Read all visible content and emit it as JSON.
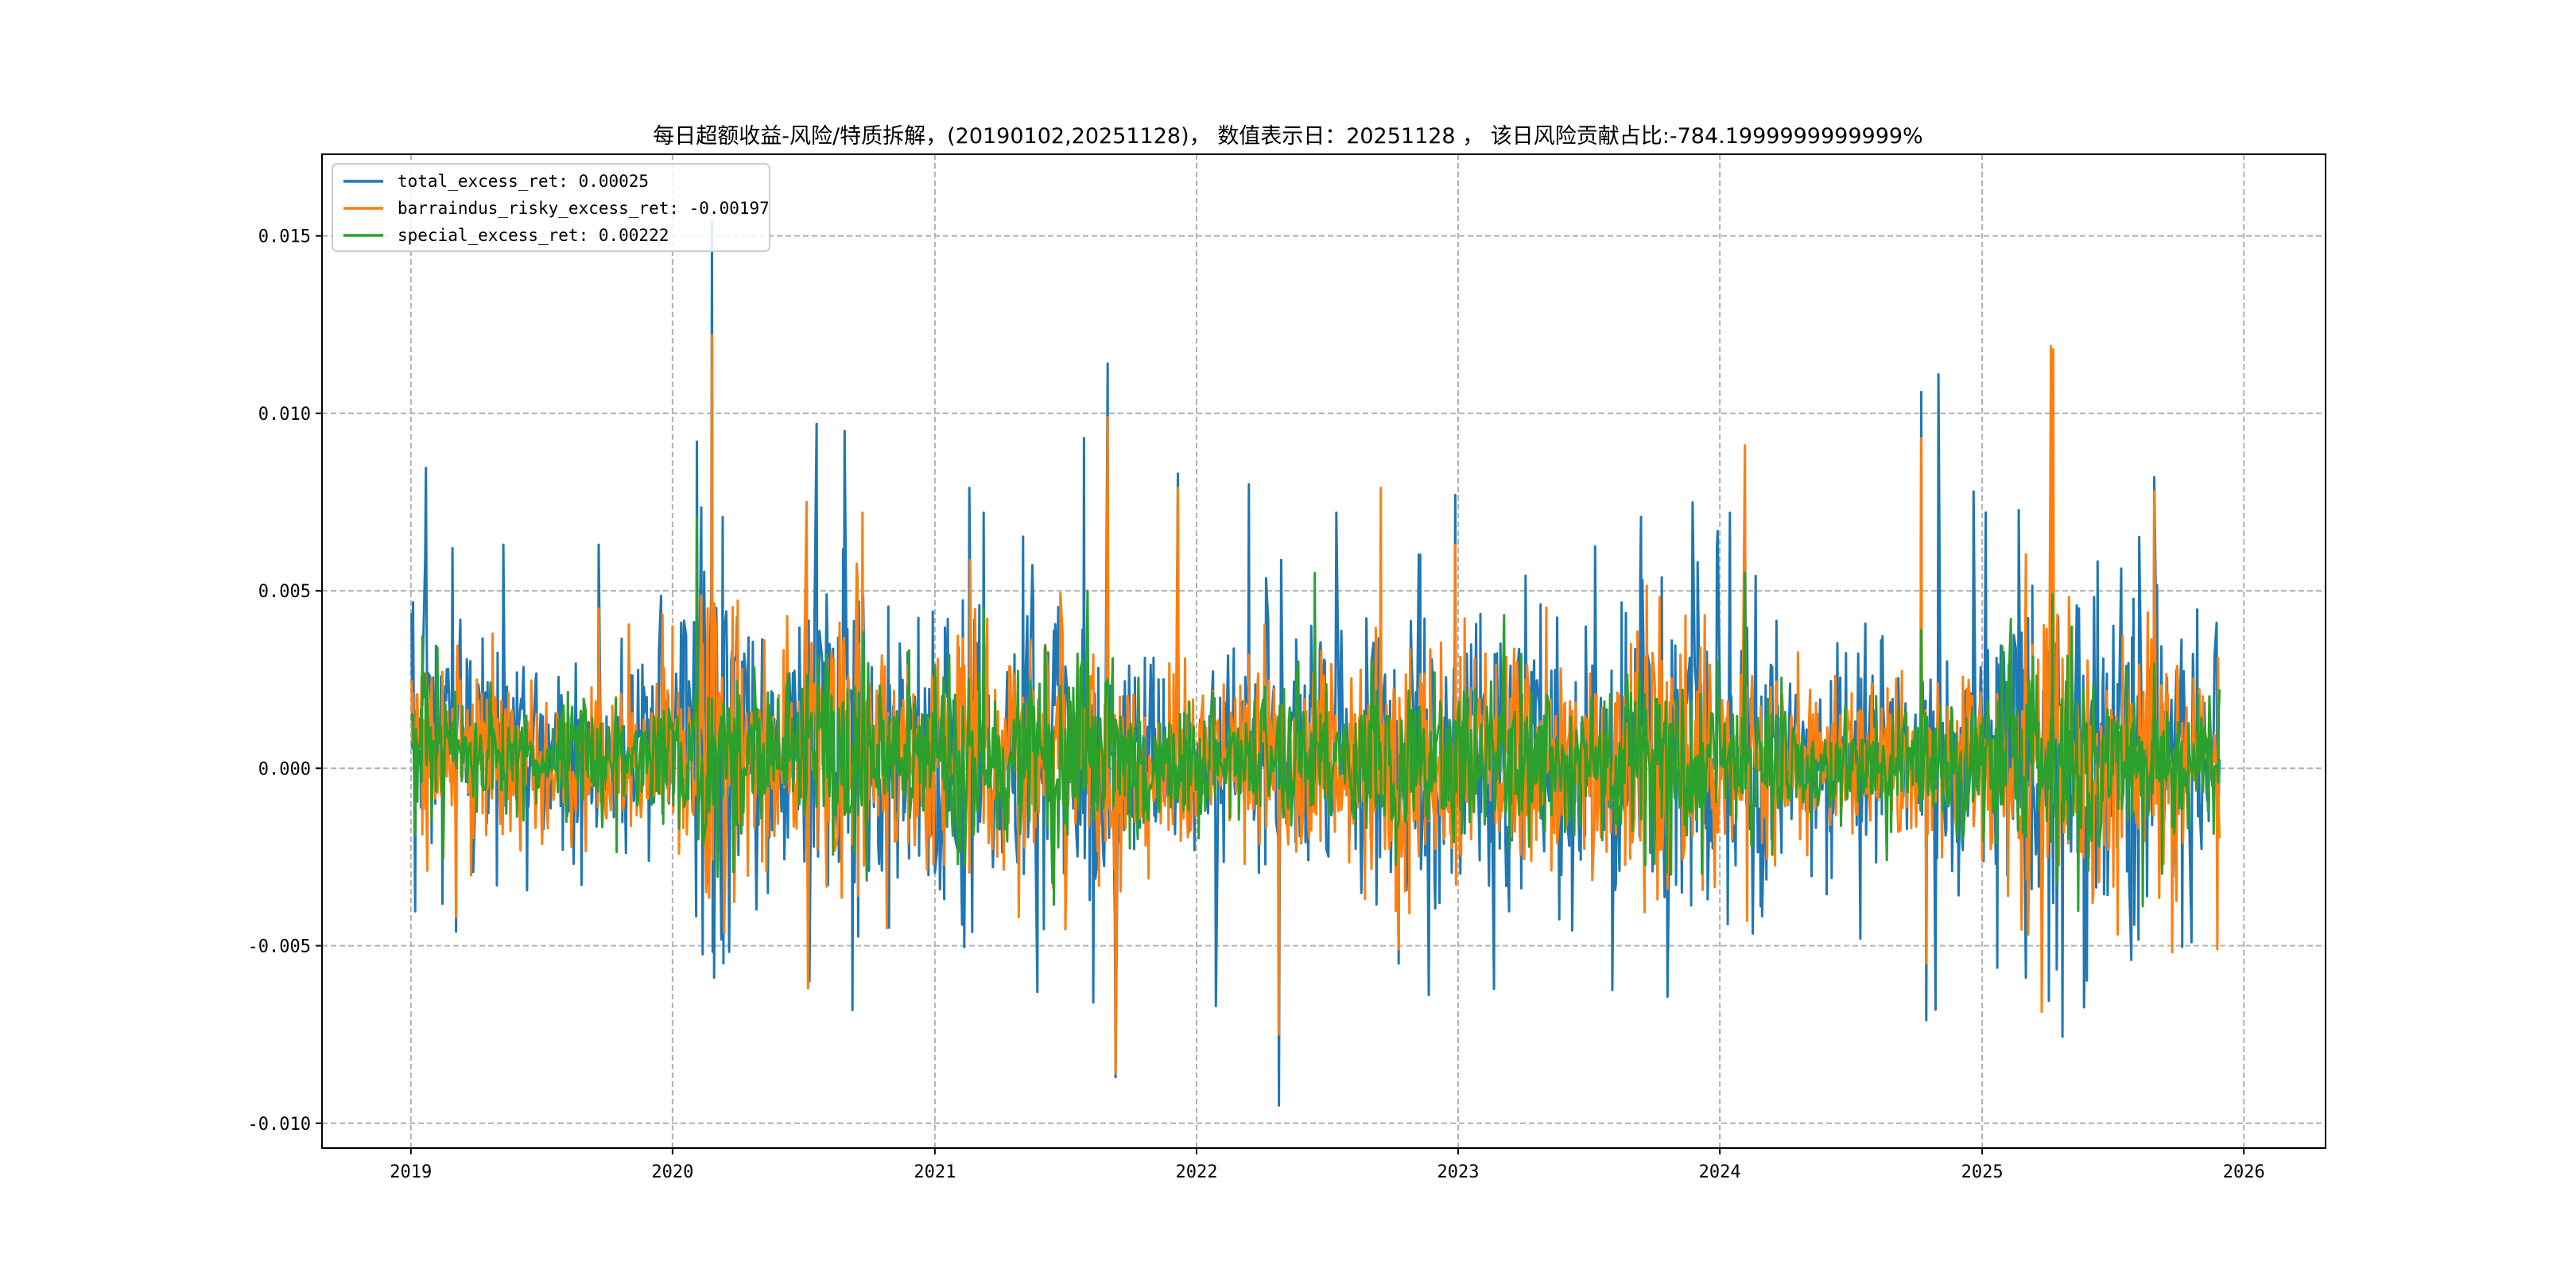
{
  "chart_data": {
    "type": "line",
    "title": "每日超额收益-风险/特质拆解，(20190102,20251128)， 数值表示日：20251128 ， 该日风险贡献占比:-784.1999999999999%",
    "xlabel": "",
    "ylabel": "",
    "x_ticks": [
      "2019",
      "2020",
      "2021",
      "2022",
      "2023",
      "2024",
      "2025",
      "2026"
    ],
    "y_ticks": [
      "0.015",
      "0.010",
      "0.005",
      "0.000",
      "-0.005",
      "-0.010"
    ],
    "xlim": [
      "2018-08-30",
      "2026-04-25"
    ],
    "ylim": [
      -0.0107,
      0.0173
    ],
    "grid": true,
    "legend_position": "top-left",
    "date_range": [
      "2019-01-02",
      "2025-11-28"
    ],
    "series": [
      {
        "name": "total_excess_ret: 0.00025",
        "color": "#1f77b4",
        "volatility": [
          0.0025,
          0.0022,
          0.0018,
          0.002,
          0.0015,
          0.0013,
          0.0012,
          0.0018,
          0.0016,
          0.0015,
          0.0014,
          0.0018,
          0.0017,
          0.003,
          0.0026,
          0.0022,
          0.0018,
          0.002,
          0.0024,
          0.0028,
          0.0032,
          0.0024,
          0.002,
          0.0018,
          0.0022,
          0.0027,
          0.0023,
          0.002,
          0.0022,
          0.0026,
          0.0024,
          0.0021,
          0.0018,
          0.0016,
          0.0014,
          0.0014,
          0.0013,
          0.0012,
          0.0018,
          0.002,
          0.0019,
          0.0018,
          0.0017,
          0.0019,
          0.0021,
          0.0026,
          0.0024,
          0.0022,
          0.0021,
          0.0023,
          0.0022,
          0.002,
          0.0018,
          0.0017,
          0.0018,
          0.0022,
          0.0025,
          0.0028,
          0.0026,
          0.0024,
          0.0022,
          0.0021,
          0.0018,
          0.0016,
          0.0015,
          0.0014,
          0.0015,
          0.0016,
          0.0014,
          0.0013,
          0.0015,
          0.0016,
          0.0022,
          0.0028,
          0.0032,
          0.0034,
          0.003,
          0.0026,
          0.0024,
          0.0026,
          0.0022,
          0.0016,
          0.0014
        ],
        "mean": [
          0.0008,
          0.0008,
          0.0007,
          0.0007,
          0.0005,
          0.0004,
          0.0004,
          0.0004,
          0.0004,
          0.0004,
          0.0005,
          0.0007,
          0.0007,
          0.0007,
          0.0007,
          0.0006,
          0.0005,
          0.0009,
          0.0009,
          0.0009,
          0.0006,
          0.0006,
          0.0005,
          0.0004,
          0.0004,
          0.0004,
          0.0003,
          0.0003,
          0.0004,
          0.0004,
          0.0004,
          0.0003,
          0.0002,
          0.0002,
          0.0003,
          0.0003,
          0.0004,
          0.0005,
          0.0005,
          0.0006,
          0.0005,
          0.0004,
          0.0004,
          0.0004,
          0.0003,
          0.0003,
          0.0003,
          0.0003,
          0.0005,
          0.0004,
          0.0004,
          0.0003,
          0.0003,
          0.0002,
          0.0003,
          0.0004,
          0.0005,
          0.0005,
          0.0004,
          0.0004,
          0.0003,
          0.0003,
          0.0003,
          0.0003,
          0.0003,
          0.0003,
          0.0004,
          0.0004,
          0.0004,
          0.0004,
          0.0004,
          0.0004,
          0.0005,
          0.0005,
          0.0006,
          0.0005,
          0.0004,
          0.0004,
          0.0004,
          0.0004,
          0.0004,
          0.0003,
          0.0003
        ],
        "spikes": [
          [
            "2019-02-28",
            0.0062
          ],
          [
            "2019-03-05",
            -0.0046
          ],
          [
            "2019-05-10",
            0.0063
          ],
          [
            "2019-09-20",
            0.0063
          ],
          [
            "2020-02-04",
            0.0092
          ],
          [
            "2020-02-25",
            0.0154
          ],
          [
            "2020-02-28",
            -0.0059
          ],
          [
            "2020-07-06",
            0.0073
          ],
          [
            "2020-07-10",
            -0.006
          ],
          [
            "2020-07-20",
            0.0097
          ],
          [
            "2020-08-28",
            0.0095
          ],
          [
            "2021-02-18",
            0.0079
          ],
          [
            "2021-03-10",
            0.0072
          ],
          [
            "2021-05-24",
            -0.0063
          ],
          [
            "2021-07-28",
            0.0093
          ],
          [
            "2021-08-10",
            -0.0066
          ],
          [
            "2021-08-30",
            0.0114
          ],
          [
            "2021-09-10",
            -0.0087
          ],
          [
            "2021-12-06",
            0.0083
          ],
          [
            "2022-01-28",
            -0.0067
          ],
          [
            "2022-03-15",
            0.008
          ],
          [
            "2022-04-26",
            -0.0095
          ],
          [
            "2022-07-15",
            0.0072
          ],
          [
            "2022-10-10",
            -0.0055
          ],
          [
            "2022-12-28",
            0.0077
          ],
          [
            "2023-09-15",
            0.0053
          ],
          [
            "2024-01-15",
            0.0072
          ],
          [
            "2024-02-05",
            0.0077
          ],
          [
            "2024-07-15",
            -0.0048
          ],
          [
            "2024-10-08",
            0.0106
          ],
          [
            "2024-10-15",
            -0.0071
          ],
          [
            "2024-10-28",
            -0.0068
          ],
          [
            "2024-11-01",
            0.0111
          ],
          [
            "2024-12-20",
            0.0078
          ],
          [
            "2025-04-07",
            0.0116
          ],
          [
            "2025-07-28",
            -0.0054
          ],
          [
            "2025-08-29",
            0.0082
          ],
          [
            "2025-10-20",
            -0.0049
          ],
          [
            "2025-11-24",
            0.0041
          ]
        ],
        "last": [
          [
            "2025-11-25",
            -0.0022
          ],
          [
            "2025-11-26",
            0.0014
          ],
          [
            "2025-11-27",
            -0.0008
          ],
          [
            "2025-11-28",
            0.00025
          ]
        ]
      },
      {
        "name": "barraindus_risky_excess_ret: -0.00197",
        "color": "#ff7f0e",
        "volatility": [
          0.0015,
          0.0014,
          0.0012,
          0.0013,
          0.0011,
          0.001,
          0.001,
          0.0013,
          0.0012,
          0.0011,
          0.0011,
          0.0014,
          0.0014,
          0.0024,
          0.0022,
          0.0018,
          0.0014,
          0.0016,
          0.0019,
          0.0022,
          0.0026,
          0.002,
          0.0016,
          0.0014,
          0.0017,
          0.0022,
          0.0019,
          0.0016,
          0.0018,
          0.0021,
          0.0019,
          0.0017,
          0.0014,
          0.0012,
          0.0011,
          0.0011,
          0.001,
          0.0009,
          0.0013,
          0.0015,
          0.0014,
          0.0014,
          0.0013,
          0.0015,
          0.0017,
          0.0021,
          0.0019,
          0.0017,
          0.0017,
          0.0019,
          0.0018,
          0.0016,
          0.0014,
          0.0013,
          0.0014,
          0.0017,
          0.002,
          0.0023,
          0.0021,
          0.0019,
          0.0017,
          0.0016,
          0.0014,
          0.0012,
          0.0011,
          0.0011,
          0.0012,
          0.0012,
          0.0011,
          0.001,
          0.0012,
          0.0012,
          0.0018,
          0.0023,
          0.0026,
          0.0028,
          0.0024,
          0.0021,
          0.0019,
          0.0021,
          0.0018,
          0.0013,
          0.0011
        ],
        "mean": [
          0.0003,
          0.0003,
          0.0003,
          0.0003,
          0.0002,
          0.0002,
          0.0002,
          0.0002,
          0.0002,
          0.0002,
          0.0002,
          0.0003,
          0.0003,
          0.0003,
          0.0003,
          0.0003,
          0.0002,
          0.0004,
          0.0004,
          0.0004,
          0.0003,
          0.0003,
          0.0002,
          0.0002,
          0.0002,
          0.0002,
          0.0001,
          0.0001,
          0.0002,
          0.0002,
          0.0002,
          0.0001,
          0.0001,
          0.0001,
          0.0001,
          0.0001,
          0.0002,
          0.0002,
          0.0002,
          0.0003,
          0.0002,
          0.0002,
          0.0002,
          0.0002,
          0.0001,
          0.0001,
          0.0001,
          0.0001,
          0.0002,
          0.0002,
          0.0002,
          0.0001,
          0.0001,
          0.0001,
          0.0001,
          0.0002,
          0.0002,
          0.0002,
          0.0002,
          0.0002,
          0.0001,
          0.0001,
          0.0001,
          0.0001,
          0.0001,
          0.0001,
          0.0002,
          0.0002,
          0.0002,
          0.0002,
          0.0002,
          0.0002,
          0.0002,
          0.0002,
          0.0003,
          0.0002,
          0.0002,
          0.0002,
          0.0002,
          0.0002,
          0.0002,
          0.0001,
          0.0001
        ],
        "spikes": [
          [
            "2019-03-05",
            -0.0042
          ],
          [
            "2019-09-20",
            0.0045
          ],
          [
            "2020-02-25",
            0.0122
          ],
          [
            "2020-07-08",
            -0.0062
          ],
          [
            "2020-07-06",
            0.0075
          ],
          [
            "2021-08-30",
            0.0099
          ],
          [
            "2021-09-10",
            -0.0086
          ],
          [
            "2021-12-06",
            0.0079
          ],
          [
            "2022-04-26",
            -0.0075
          ],
          [
            "2022-09-15",
            0.0079
          ],
          [
            "2022-10-10",
            -0.0051
          ],
          [
            "2022-12-28",
            0.0063
          ],
          [
            "2024-02-05",
            0.0091
          ],
          [
            "2024-02-08",
            -0.0043
          ],
          [
            "2024-10-08",
            0.0093
          ],
          [
            "2024-10-15",
            -0.0055
          ],
          [
            "2025-04-07",
            0.0119
          ],
          [
            "2025-04-10",
            0.0118
          ],
          [
            "2025-08-29",
            0.0078
          ],
          [
            "2025-11-25",
            -0.0051
          ]
        ],
        "last": [
          [
            "2025-11-26",
            0.0031
          ],
          [
            "2025-11-27",
            -0.0012
          ],
          [
            "2025-11-28",
            -0.00197
          ]
        ]
      },
      {
        "name": "special_excess_ret: 0.00222",
        "color": "#2ca02c",
        "volatility": [
          0.0011,
          0.001,
          0.0009,
          0.001,
          0.0009,
          0.0008,
          0.0008,
          0.001,
          0.0009,
          0.0009,
          0.0008,
          0.001,
          0.001,
          0.0015,
          0.0014,
          0.0012,
          0.001,
          0.0011,
          0.0013,
          0.0014,
          0.0016,
          0.0013,
          0.0011,
          0.001,
          0.0012,
          0.0014,
          0.0012,
          0.0011,
          0.0012,
          0.0013,
          0.0012,
          0.0011,
          0.001,
          0.0009,
          0.0008,
          0.0008,
          0.0008,
          0.0007,
          0.0009,
          0.001,
          0.001,
          0.0009,
          0.0009,
          0.001,
          0.0011,
          0.0013,
          0.0012,
          0.0011,
          0.0011,
          0.0012,
          0.0012,
          0.0011,
          0.001,
          0.0009,
          0.001,
          0.0011,
          0.0013,
          0.0014,
          0.0013,
          0.0012,
          0.0011,
          0.0011,
          0.001,
          0.0009,
          0.0008,
          0.0008,
          0.0009,
          0.0009,
          0.0008,
          0.0008,
          0.0009,
          0.0009,
          0.0011,
          0.0014,
          0.0016,
          0.0017,
          0.0015,
          0.0013,
          0.0012,
          0.0013,
          0.0011,
          0.0009,
          0.0008
        ],
        "mean": [
          0.0005,
          0.0005,
          0.0004,
          0.0004,
          0.0003,
          0.0002,
          0.0002,
          0.0002,
          0.0002,
          0.0002,
          0.0003,
          0.0004,
          0.0004,
          0.0004,
          0.0004,
          0.0003,
          0.0003,
          0.0005,
          0.0005,
          0.0005,
          0.0003,
          0.0003,
          0.0003,
          0.0002,
          0.0002,
          0.0002,
          0.0002,
          0.0002,
          0.0002,
          0.0002,
          0.0002,
          0.0002,
          0.0001,
          0.0001,
          0.0002,
          0.0002,
          0.0002,
          0.0003,
          0.0003,
          0.0003,
          0.0003,
          0.0002,
          0.0002,
          0.0002,
          0.0002,
          0.0002,
          0.0002,
          0.0002,
          0.0003,
          0.0002,
          0.0002,
          0.0002,
          0.0002,
          0.0001,
          0.0002,
          0.0002,
          0.0003,
          0.0003,
          0.0002,
          0.0002,
          0.0002,
          0.0002,
          0.0002,
          0.0002,
          0.0002,
          0.0002,
          0.0002,
          0.0002,
          0.0002,
          0.0002,
          0.0002,
          0.0002,
          0.0003,
          0.0003,
          0.0003,
          0.0003,
          0.0002,
          0.0002,
          0.0002,
          0.0002,
          0.0002,
          0.0002,
          0.0002
        ],
        "spikes": [
          [
            "2020-02-04",
            0.0071
          ],
          [
            "2020-02-06",
            -0.002
          ],
          [
            "2021-03-10",
            0.0045
          ],
          [
            "2021-08-02",
            0.005
          ],
          [
            "2022-06-15",
            0.0055
          ],
          [
            "2024-02-05",
            0.0055
          ],
          [
            "2024-10-08",
            0.0039
          ],
          [
            "2025-02-10",
            0.0042
          ]
        ],
        "last": [
          [
            "2025-11-26",
            -0.0004
          ],
          [
            "2025-11-27",
            0.0016
          ],
          [
            "2025-11-28",
            0.00222
          ]
        ]
      }
    ]
  }
}
